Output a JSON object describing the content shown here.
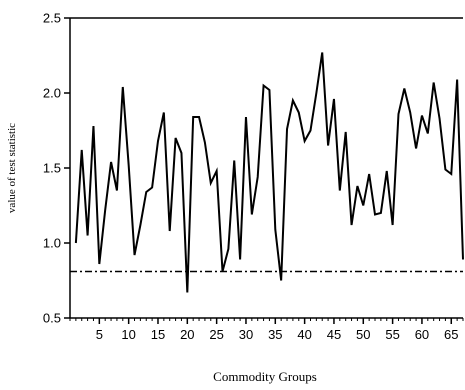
{
  "chart_data": {
    "type": "line",
    "title": "",
    "xlabel": "Commodity Groups",
    "ylabel": "value of test statistic",
    "xlim": [
      0,
      67
    ],
    "ylim": [
      0.5,
      2.5
    ],
    "grid": false,
    "x_ticks": [
      5,
      10,
      15,
      20,
      25,
      30,
      35,
      40,
      45,
      50,
      55,
      60,
      65
    ],
    "x_tick_labels": [
      "5",
      "10",
      "15",
      "20",
      "25",
      "30",
      "35",
      "40",
      "45",
      "50",
      "55",
      "60",
      "65"
    ],
    "y_ticks": [
      0.5,
      1.0,
      1.5,
      2.0,
      2.5
    ],
    "y_tick_labels": [
      "0.5",
      "1.0",
      "1.5",
      "2.0",
      "2.5"
    ],
    "series": [
      {
        "style": "solid",
        "color": "#000000",
        "x": [
          1,
          2,
          3,
          4,
          5,
          6,
          7,
          8,
          9,
          10,
          11,
          12,
          13,
          14,
          15,
          16,
          17,
          18,
          19,
          20,
          21,
          22,
          23,
          24,
          25,
          26,
          27,
          28,
          29,
          30,
          31,
          32,
          33,
          34,
          35,
          36,
          37,
          38,
          39,
          40,
          41,
          42,
          43,
          44,
          45,
          46,
          47,
          48,
          49,
          50,
          51,
          52,
          53,
          54,
          55,
          56,
          57,
          58,
          59,
          60,
          61,
          62,
          63,
          64,
          65,
          66,
          67
        ],
        "values": [
          1.0,
          1.62,
          1.05,
          1.78,
          0.86,
          1.22,
          1.54,
          1.35,
          2.04,
          1.52,
          0.92,
          1.12,
          1.34,
          1.37,
          1.68,
          1.87,
          1.08,
          1.7,
          1.6,
          0.67,
          1.84,
          1.84,
          1.67,
          1.4,
          1.48,
          0.81,
          0.96,
          1.55,
          0.89,
          1.84,
          1.19,
          1.44,
          2.05,
          2.02,
          1.09,
          0.75,
          1.76,
          1.95,
          1.87,
          1.68,
          1.75,
          2.0,
          2.27,
          1.65,
          1.96,
          1.35,
          1.74,
          1.12,
          1.38,
          1.25,
          1.46,
          1.19,
          1.2,
          1.48,
          1.12,
          1.86,
          2.03,
          1.87,
          1.63,
          1.85,
          1.73,
          2.07,
          1.83,
          1.49,
          1.46,
          2.09,
          0.89
        ]
      },
      {
        "style": "dash-dot",
        "color": "#000000",
        "x": [
          0,
          67
        ],
        "values": [
          0.81,
          0.81
        ]
      }
    ]
  }
}
